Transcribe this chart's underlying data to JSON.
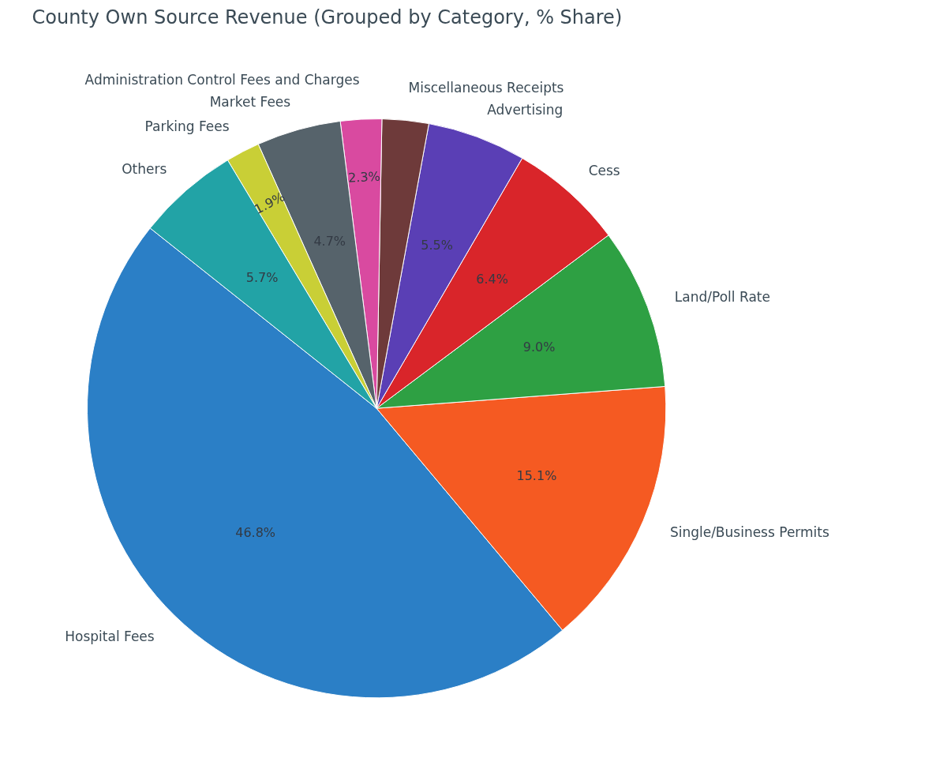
{
  "chart_data": {
    "type": "pie",
    "title": "County Own Source Revenue (Grouped by Category, % Share)",
    "categories": [
      "Hospital Fees",
      "Single/Business Permits",
      "Land/Poll Rate",
      "Cess",
      "Advertising",
      "Miscellaneous Receipts",
      "Administration Control Fees and Charges",
      "Market Fees",
      "Parking Fees",
      "Others"
    ],
    "values": [
      46.8,
      15.1,
      9.0,
      6.4,
      5.5,
      2.6,
      2.3,
      4.7,
      1.9,
      5.7
    ],
    "colors": [
      "#2b7fc6",
      "#f55a22",
      "#2ea043",
      "#d9252a",
      "#5a3fb5",
      "#6e3a3a",
      "#d94aa0",
      "#56636b",
      "#c9cf36",
      "#22a3a6"
    ],
    "value_labels": [
      "46.8%",
      "15.1%",
      "9.0%",
      "6.4%",
      "5.5%",
      null,
      "2.3%",
      "4.7%",
      "1.9%",
      "5.7%"
    ]
  }
}
